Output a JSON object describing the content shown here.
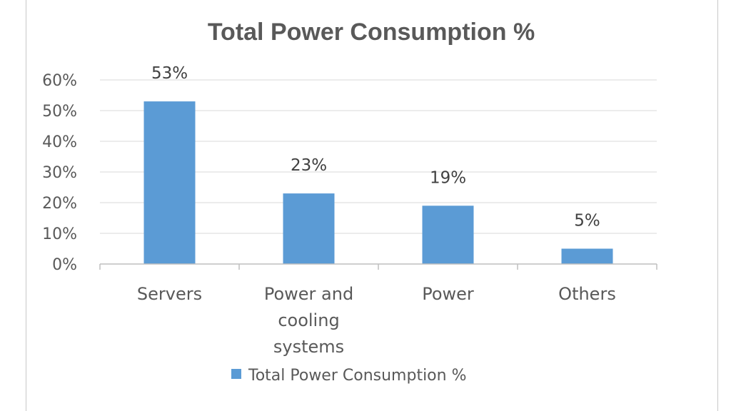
{
  "chart_data": {
    "type": "bar",
    "title": "Total Power Consumption %",
    "categories": [
      "Servers",
      "Power and cooling systems",
      "Power",
      "Others"
    ],
    "series": [
      {
        "name": "Total Power Consumption %",
        "values": [
          53,
          23,
          19,
          5
        ],
        "color": "#5b9bd5"
      }
    ],
    "data_labels": [
      "53%",
      "23%",
      "19%",
      "5%"
    ],
    "yticks": [
      "0%",
      "10%",
      "20%",
      "30%",
      "40%",
      "50%",
      "60%"
    ],
    "ylim": [
      0,
      60
    ],
    "grid": true,
    "legend": "bottom",
    "xlabel": "",
    "ylabel": ""
  }
}
